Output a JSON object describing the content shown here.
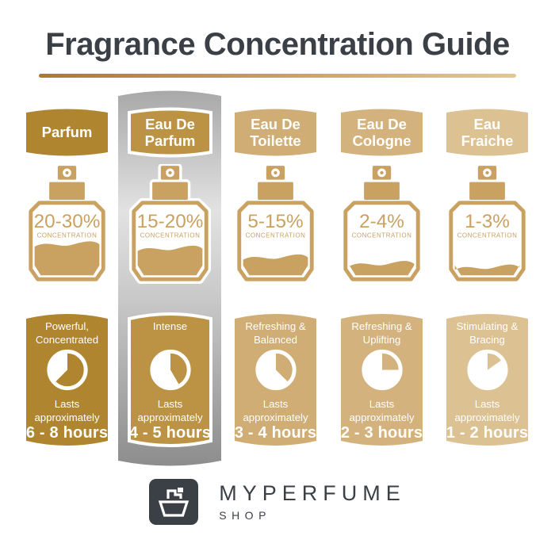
{
  "title": "Fragrance Concentration Guide",
  "palette": {
    "text_dark": "#3b4046",
    "bottle_gold": "#c9a161",
    "divider_left": "#a87c2a",
    "divider_right": "#e2c795",
    "silver_gradient": [
      "#a8a8a8",
      "#e2e2e2",
      "#c9c9c9",
      "#8d8d8d"
    ],
    "card_text": "#ffffff"
  },
  "columns": [
    {
      "name": "Parfum",
      "concentration": "20-30%",
      "concentration_label": "CONCENTRATION",
      "bottle_fill_percent": 46,
      "descriptor": "Powerful,\nConcentrated",
      "lasts": "Lasts\napproximately",
      "duration": "6 - 8 hours",
      "clock_filled_degrees": 225,
      "color": "#b0852f",
      "highlighted": false
    },
    {
      "name": "Eau De\nParfum",
      "concentration": "15-20%",
      "concentration_label": "CONCENTRATION",
      "bottle_fill_percent": 40,
      "descriptor": "Intense",
      "lasts": "Lasts\napproximately",
      "duration": "4 - 5 hours",
      "clock_filled_degrees": 150,
      "color": "#bc9345",
      "highlighted": true
    },
    {
      "name": "Eau De\nToilette",
      "concentration": "5-15%",
      "concentration_label": "CONCENTRATION",
      "bottle_fill_percent": 28,
      "descriptor": "Refreshing &\nBalanced",
      "lasts": "Lasts\napproximately",
      "duration": "3 - 4 hours",
      "clock_filled_degrees": 135,
      "color": "#cfad74",
      "highlighted": false
    },
    {
      "name": "Eau De\nCologne",
      "concentration": "2-4%",
      "concentration_label": "CONCENTRATION",
      "bottle_fill_percent": 19,
      "descriptor": "Refreshing &\nUplifting",
      "lasts": "Lasts\napproximately",
      "duration": "2 - 3 hours",
      "clock_filled_degrees": 90,
      "color": "#d3b27e",
      "highlighted": false
    },
    {
      "name": "Eau\nFraiche",
      "concentration": "1-3%",
      "concentration_label": "CONCENTRATION",
      "bottle_fill_percent": 14,
      "descriptor": "Stimulating &\nBracing",
      "lasts": "Lasts\napproximately",
      "duration": "1 - 2 hours",
      "clock_filled_degrees": 55,
      "color": "#dcc193",
      "highlighted": false
    }
  ],
  "brand": {
    "name": "MYPERFUME",
    "sub": "SHOP"
  }
}
